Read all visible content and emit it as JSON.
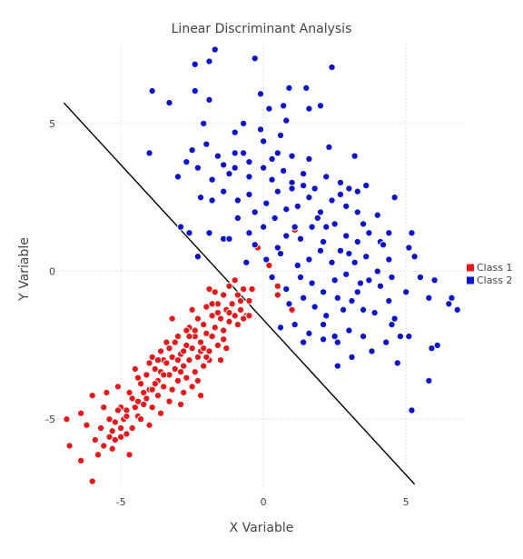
{
  "chart_data": {
    "type": "scatter",
    "title": "Linear Discriminant Analysis",
    "xlabel": "X Variable",
    "ylabel": "Y Variable",
    "xlim": [
      -7.2,
      7.0
    ],
    "ylim": [
      -7.3,
      7.7
    ],
    "x_ticks": [
      -5,
      0,
      5
    ],
    "y_ticks": [
      -5,
      0,
      5
    ],
    "grid": true,
    "legend_position": "right",
    "decision_boundary": {
      "x": [
        -7.0,
        5.3
      ],
      "y": [
        5.7,
        -7.2
      ]
    },
    "series": [
      {
        "name": "Class 1",
        "color": "#e41a1c",
        "points": [
          [
            -6.9,
            -5.0
          ],
          [
            -6.8,
            -5.9
          ],
          [
            -6.4,
            -4.8
          ],
          [
            -6.4,
            -6.4
          ],
          [
            -6.0,
            -7.1
          ],
          [
            -6.0,
            -4.2
          ],
          [
            -5.7,
            -5.3
          ],
          [
            -5.6,
            -4.6
          ],
          [
            -5.6,
            -5.9
          ],
          [
            -5.5,
            -4.1
          ],
          [
            -5.4,
            -5.6
          ],
          [
            -5.3,
            -6.0
          ],
          [
            -5.3,
            -5.4
          ],
          [
            -5.2,
            -5.1
          ],
          [
            -5.1,
            -3.9
          ],
          [
            -5.0,
            -4.6
          ],
          [
            -5.0,
            -5.6
          ],
          [
            -4.9,
            -5.0
          ],
          [
            -4.8,
            -4.7
          ],
          [
            -4.8,
            -5.5
          ],
          [
            -4.7,
            -6.2
          ],
          [
            -4.6,
            -5.3
          ],
          [
            -4.5,
            -3.3
          ],
          [
            -4.4,
            -4.9
          ],
          [
            -4.4,
            -4.4
          ],
          [
            -4.3,
            -3.8
          ],
          [
            -4.3,
            -5.0
          ],
          [
            -4.2,
            -4.5
          ],
          [
            -4.1,
            -3.5
          ],
          [
            -4.0,
            -4.0
          ],
          [
            -4.0,
            -5.2
          ],
          [
            -3.9,
            -2.9
          ],
          [
            -3.9,
            -4.6
          ],
          [
            -3.8,
            -3.3
          ],
          [
            -3.7,
            -4.2
          ],
          [
            -3.7,
            -3.7
          ],
          [
            -3.6,
            -2.7
          ],
          [
            -3.6,
            -4.8
          ],
          [
            -3.5,
            -3.9
          ],
          [
            -3.5,
            -3.0
          ],
          [
            -3.4,
            -2.4
          ],
          [
            -3.3,
            -4.4
          ],
          [
            -3.3,
            -3.5
          ],
          [
            -3.2,
            -2.9
          ],
          [
            -3.2,
            -4.0
          ],
          [
            -3.1,
            -3.3
          ],
          [
            -3.0,
            -2.2
          ],
          [
            -3.0,
            -3.7
          ],
          [
            -2.9,
            -4.5
          ],
          [
            -2.9,
            -2.8
          ],
          [
            -2.8,
            -3.2
          ],
          [
            -2.8,
            -4.1
          ],
          [
            -2.7,
            -2.5
          ],
          [
            -2.7,
            -3.6
          ],
          [
            -2.6,
            -1.9
          ],
          [
            -2.6,
            -3.0
          ],
          [
            -2.5,
            -2.6
          ],
          [
            -2.5,
            -3.9
          ],
          [
            -2.4,
            -2.2
          ],
          [
            -2.4,
            -3.4
          ],
          [
            -2.3,
            -1.6
          ],
          [
            -2.3,
            -2.9
          ],
          [
            -2.2,
            -4.2
          ],
          [
            -2.2,
            -2.4
          ],
          [
            -2.1,
            -1.8
          ],
          [
            -2.1,
            -3.2
          ],
          [
            -2.0,
            -2.1
          ],
          [
            -2.0,
            -1.2
          ],
          [
            -1.9,
            -2.7
          ],
          [
            -1.9,
            -3.0
          ],
          [
            -1.8,
            -1.5
          ],
          [
            -1.8,
            -2.2
          ],
          [
            -1.7,
            -0.7
          ],
          [
            -1.7,
            -1.9
          ],
          [
            -1.6,
            -2.5
          ],
          [
            -1.6,
            -1.1
          ],
          [
            -1.5,
            -1.6
          ],
          [
            -1.5,
            -3.0
          ],
          [
            -1.4,
            -0.8
          ],
          [
            -1.4,
            -2.0
          ],
          [
            -1.3,
            -1.3
          ],
          [
            -1.3,
            -2.6
          ],
          [
            -1.2,
            -0.5
          ],
          [
            -1.2,
            -1.7
          ],
          [
            -1.1,
            -1.1
          ],
          [
            -1.0,
            -0.3
          ],
          [
            -1.0,
            -1.5
          ],
          [
            -0.9,
            -0.8
          ],
          [
            -0.8,
            -1.3
          ],
          [
            -0.7,
            -0.6
          ],
          [
            -0.6,
            -1.5
          ],
          [
            -0.5,
            -1.0
          ],
          [
            -0.4,
            -0.6
          ],
          [
            -0.2,
            0.8
          ],
          [
            0.2,
            0.2
          ],
          [
            0.5,
            -0.5
          ],
          [
            0.5,
            -0.8
          ],
          [
            1.0,
            -1.3
          ],
          [
            1.1,
            1.4
          ],
          [
            -0.7,
            -1.6
          ],
          [
            -3.2,
            -1.6
          ],
          [
            -3.3,
            -2.6
          ],
          [
            -3.4,
            -3.1
          ],
          [
            -3.6,
            -3.4
          ],
          [
            -3.8,
            -3.8
          ],
          [
            -4.0,
            -3.1
          ],
          [
            -4.2,
            -4.1
          ],
          [
            -4.6,
            -4.3
          ],
          [
            -4.8,
            -4.9
          ],
          [
            -5.0,
            -5.3
          ],
          [
            -5.2,
            -5.7
          ],
          [
            -5.8,
            -6.2
          ],
          [
            -5.9,
            -5.7
          ],
          [
            -6.2,
            -5.2
          ],
          [
            -2.0,
            -2.9
          ],
          [
            -2.2,
            -2.7
          ],
          [
            -2.4,
            -2.0
          ],
          [
            -2.6,
            -2.2
          ],
          [
            -2.8,
            -2.7
          ],
          [
            -3.0,
            -3.0
          ],
          [
            -1.6,
            -1.4
          ],
          [
            -1.8,
            -1.1
          ],
          [
            -1.4,
            -2.3
          ],
          [
            -1.2,
            -1.4
          ],
          [
            -0.9,
            -1.8
          ],
          [
            -0.5,
            -1.5
          ],
          [
            -0.8,
            -1.0
          ],
          [
            -4.1,
            -4.3
          ],
          [
            -3.9,
            -4.0
          ],
          [
            -3.5,
            -3.5
          ],
          [
            -3.1,
            -2.4
          ],
          [
            -2.9,
            -3.4
          ],
          [
            -2.7,
            -2.0
          ],
          [
            -4.5,
            -4.6
          ],
          [
            -4.7,
            -4.1
          ],
          [
            -5.1,
            -4.7
          ],
          [
            -5.4,
            -5.0
          ],
          [
            -2.5,
            -1.3
          ],
          [
            -2.3,
            -3.7
          ],
          [
            -2.1,
            -2.6
          ],
          [
            -1.9,
            -0.6
          ],
          [
            -3.7,
            -3.0
          ],
          [
            -4.4,
            -3.6
          ]
        ]
      },
      {
        "name": "Class 2",
        "color": "#0a14c8",
        "points": [
          [
            -1.7,
            7.5
          ],
          [
            -1.9,
            7.1
          ],
          [
            -2.4,
            7.0
          ],
          [
            -0.3,
            7.2
          ],
          [
            0.9,
            6.2
          ],
          [
            1.5,
            6.2
          ],
          [
            2.4,
            6.9
          ],
          [
            -3.9,
            6.1
          ],
          [
            -3.3,
            5.7
          ],
          [
            -2.4,
            6.1
          ],
          [
            -1.9,
            5.8
          ],
          [
            -0.1,
            6.0
          ],
          [
            0.7,
            5.6
          ],
          [
            0.2,
            5.5
          ],
          [
            1.6,
            5.5
          ],
          [
            2.0,
            5.6
          ],
          [
            -2.1,
            5.0
          ],
          [
            -1.0,
            4.7
          ],
          [
            -0.7,
            5.0
          ],
          [
            -0.1,
            4.8
          ],
          [
            0.6,
            4.6
          ],
          [
            0.8,
            5.1
          ],
          [
            -4.0,
            4.0
          ],
          [
            -2.5,
            4.1
          ],
          [
            -2.0,
            4.3
          ],
          [
            -1.6,
            3.9
          ],
          [
            -1.0,
            4.0
          ],
          [
            -0.5,
            3.7
          ],
          [
            0.0,
            4.4
          ],
          [
            0.5,
            4.0
          ],
          [
            1.0,
            3.9
          ],
          [
            1.6,
            3.8
          ],
          [
            2.3,
            4.2
          ],
          [
            3.2,
            3.9
          ],
          [
            -3.0,
            3.2
          ],
          [
            -2.7,
            3.7
          ],
          [
            -2.3,
            3.5
          ],
          [
            -1.8,
            3.1
          ],
          [
            -1.4,
            3.6
          ],
          [
            -1.0,
            3.5
          ],
          [
            -0.5,
            3.2
          ],
          [
            0.0,
            3.5
          ],
          [
            0.3,
            3.1
          ],
          [
            0.7,
            3.4
          ],
          [
            1.0,
            3.0
          ],
          [
            1.4,
            3.3
          ],
          [
            1.8,
            2.8
          ],
          [
            2.2,
            3.2
          ],
          [
            2.7,
            3.0
          ],
          [
            3.3,
            2.7
          ],
          [
            3.6,
            2.9
          ],
          [
            -2.2,
            2.5
          ],
          [
            -1.8,
            2.4
          ],
          [
            -1.4,
            2.7
          ],
          [
            -0.9,
            2.4
          ],
          [
            -0.5,
            2.6
          ],
          [
            0.1,
            2.3
          ],
          [
            0.5,
            2.7
          ],
          [
            0.8,
            2.1
          ],
          [
            1.2,
            2.2
          ],
          [
            1.6,
            2.5
          ],
          [
            2.0,
            2.0
          ],
          [
            2.4,
            2.4
          ],
          [
            2.9,
            2.2
          ],
          [
            3.3,
            2.0
          ],
          [
            4.0,
            1.9
          ],
          [
            4.6,
            2.5
          ],
          [
            -2.9,
            1.5
          ],
          [
            -2.6,
            1.3
          ],
          [
            -1.9,
            1.3
          ],
          [
            -1.4,
            1.1
          ],
          [
            -0.9,
            1.8
          ],
          [
            -0.5,
            1.3
          ],
          [
            0.0,
            1.5
          ],
          [
            0.4,
            1.8
          ],
          [
            0.8,
            1.2
          ],
          [
            1.3,
            1.1
          ],
          [
            1.7,
            1.5
          ],
          [
            2.1,
            1.0
          ],
          [
            2.5,
            1.6
          ],
          [
            2.9,
            1.2
          ],
          [
            3.3,
            1.0
          ],
          [
            3.7,
            1.3
          ],
          [
            4.1,
            1.0
          ],
          [
            4.4,
            1.3
          ],
          [
            5.2,
            1.3
          ],
          [
            -2.3,
            0.5
          ],
          [
            -1.2,
            1.1
          ],
          [
            -0.3,
            0.9
          ],
          [
            0.1,
            0.4
          ],
          [
            0.6,
            0.6
          ],
          [
            1.2,
            0.2
          ],
          [
            1.6,
            0.4
          ],
          [
            2.0,
            0.7
          ],
          [
            2.4,
            0.3
          ],
          [
            2.7,
            0.7
          ],
          [
            3.2,
            0.3
          ],
          [
            3.6,
            0.5
          ],
          [
            4.0,
            0.0
          ],
          [
            4.4,
            0.4
          ],
          [
            5.1,
            0.8
          ],
          [
            5.3,
            0.5
          ],
          [
            -0.6,
            0.3
          ],
          [
            0.3,
            -0.2
          ],
          [
            0.8,
            -0.6
          ],
          [
            1.3,
            -0.2
          ],
          [
            1.7,
            -0.4
          ],
          [
            2.1,
            -0.7
          ],
          [
            2.5,
            -0.3
          ],
          [
            2.9,
            -0.1
          ],
          [
            3.3,
            -0.7
          ],
          [
            3.7,
            -0.3
          ],
          [
            4.1,
            -0.5
          ],
          [
            4.5,
            -0.2
          ],
          [
            5.0,
            -0.7
          ],
          [
            5.5,
            -0.2
          ],
          [
            6.0,
            -0.3
          ],
          [
            6.6,
            -0.9
          ],
          [
            6.8,
            -1.3
          ],
          [
            0.9,
            -1.1
          ],
          [
            1.4,
            -0.9
          ],
          [
            1.8,
            -1.2
          ],
          [
            2.2,
            -1.5
          ],
          [
            2.6,
            -0.9
          ],
          [
            3.1,
            -1.0
          ],
          [
            3.5,
            -1.3
          ],
          [
            3.9,
            -1.4
          ],
          [
            4.5,
            -1.8
          ],
          [
            1.1,
            -1.8
          ],
          [
            1.6,
            -2.1
          ],
          [
            2.1,
            -1.8
          ],
          [
            2.5,
            -2.2
          ],
          [
            3.0,
            -2.0
          ],
          [
            3.5,
            -2.2
          ],
          [
            4.3,
            -2.4
          ],
          [
            4.8,
            -2.2
          ],
          [
            5.1,
            -2.2
          ],
          [
            2.1,
            -2.3
          ],
          [
            2.6,
            -2.4
          ],
          [
            1.4,
            -2.4
          ],
          [
            3.1,
            -2.9
          ],
          [
            3.8,
            -2.7
          ],
          [
            4.7,
            -3.1
          ],
          [
            5.9,
            -2.6
          ],
          [
            6.1,
            -2.5
          ],
          [
            2.6,
            -3.2
          ],
          [
            5.8,
            -3.7
          ],
          [
            5.2,
            -4.7
          ],
          [
            5.8,
            -0.9
          ],
          [
            6.5,
            -1.1
          ],
          [
            4.6,
            -1.6
          ],
          [
            0.6,
            -1.9
          ],
          [
            2.8,
            -1.3
          ],
          [
            1.9,
            1.8
          ],
          [
            1.0,
            2.8
          ],
          [
            -0.3,
            2.0
          ],
          [
            3.0,
            2.8
          ],
          [
            3.5,
            1.6
          ],
          [
            2.2,
            1.5
          ],
          [
            1.4,
            2.9
          ],
          [
            0.3,
            3.8
          ],
          [
            -1.2,
            3.3
          ],
          [
            -0.7,
            4.0
          ],
          [
            2.7,
            2.6
          ],
          [
            3.0,
            0.6
          ],
          [
            1.1,
            1.5
          ],
          [
            0.5,
            0.8
          ],
          [
            4.2,
            0.9
          ],
          [
            3.4,
            -0.4
          ],
          [
            4.4,
            -1.0
          ]
        ]
      }
    ]
  }
}
